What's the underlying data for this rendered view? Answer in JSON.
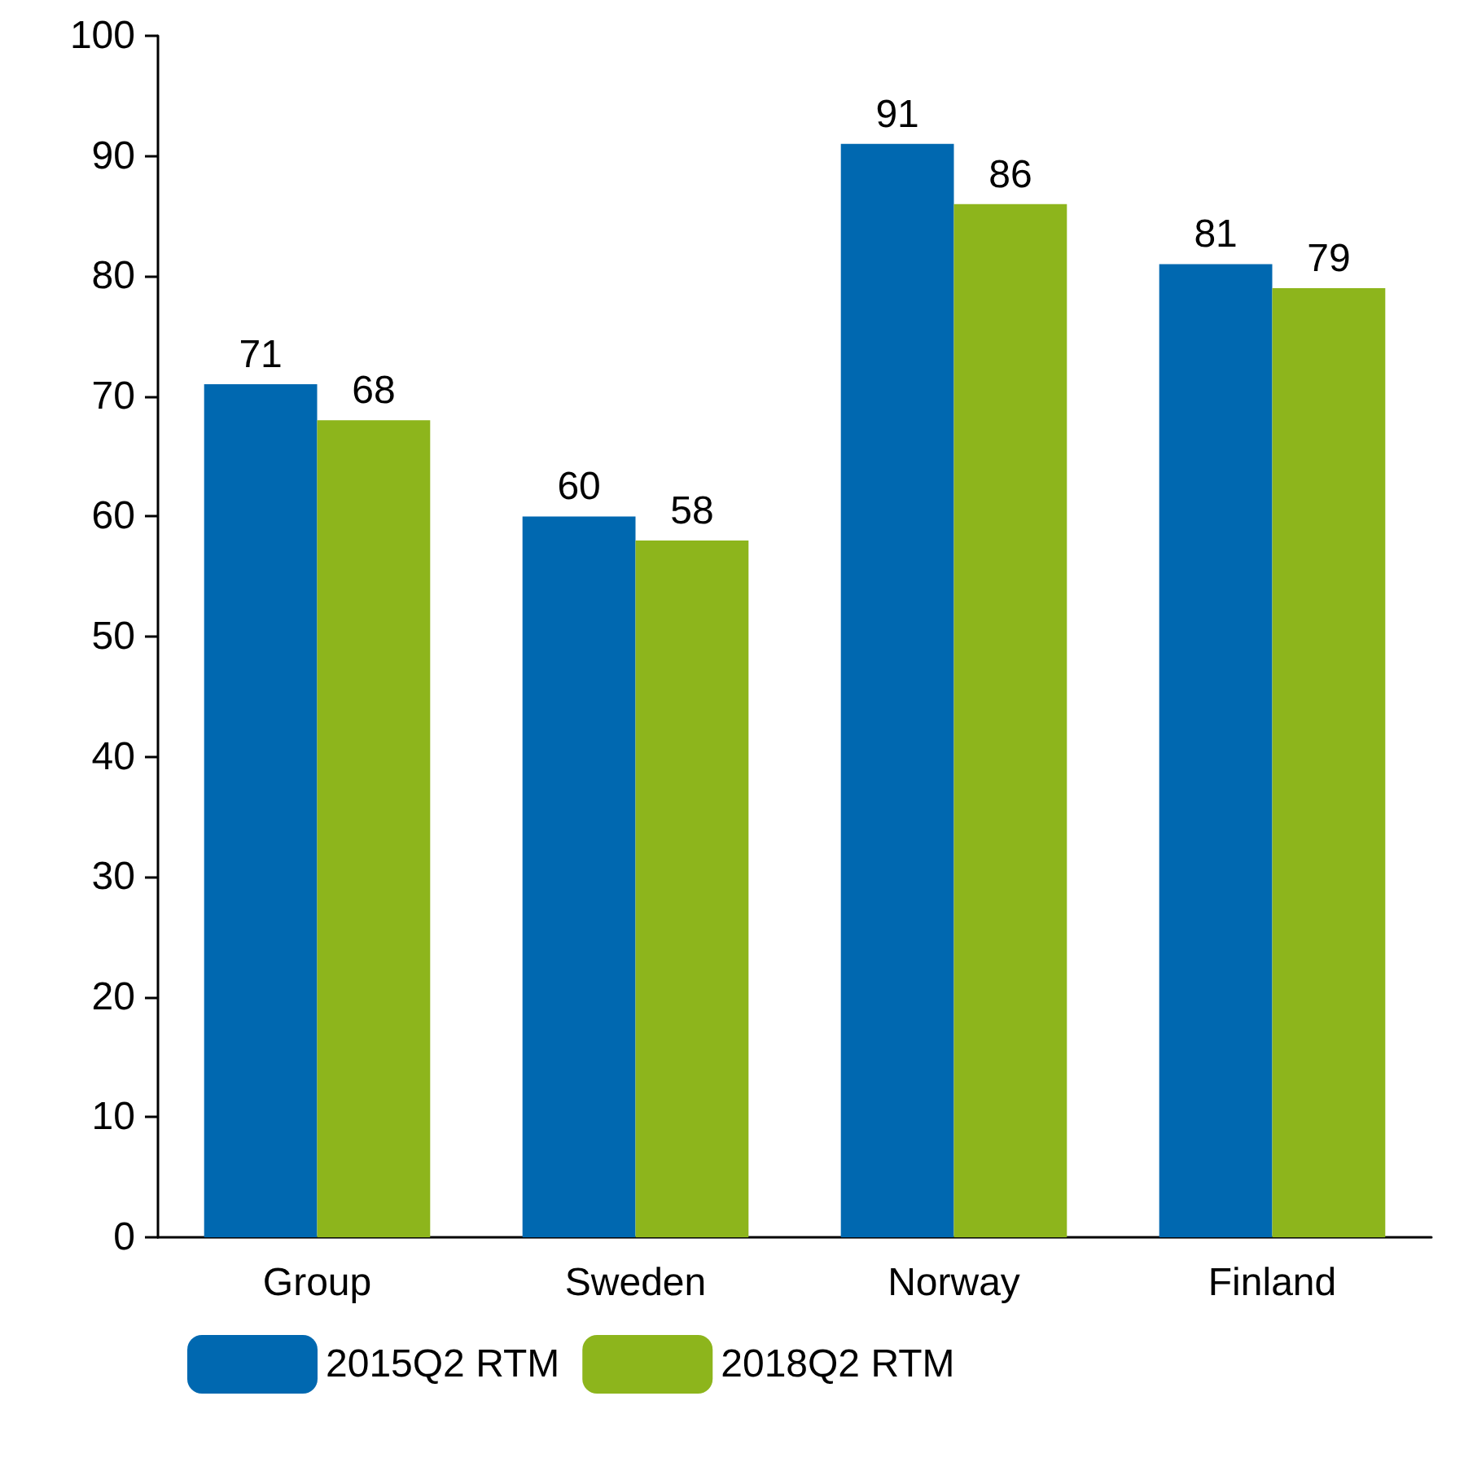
{
  "chart_data": {
    "type": "bar",
    "categories": [
      "Group",
      "Sweden",
      "Norway",
      "Finland"
    ],
    "series": [
      {
        "name": "2015Q2 RTM",
        "color": "#0068b0",
        "values": [
          71,
          60,
          91,
          81
        ]
      },
      {
        "name": "2018Q2 RTM",
        "color": "#8db51c",
        "values": [
          68,
          58,
          86,
          79
        ]
      }
    ],
    "ylim": [
      0,
      100
    ],
    "yticks": [
      0,
      10,
      20,
      30,
      40,
      50,
      60,
      70,
      80,
      90,
      100
    ],
    "data_labels": true,
    "grid": false,
    "legend": "bottom left"
  }
}
